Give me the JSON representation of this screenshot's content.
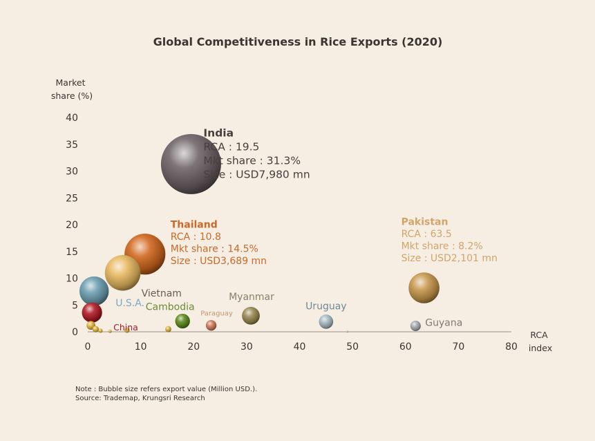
{
  "chart_data": {
    "type": "scatter",
    "title": "Global Competitiveness in Rice Exports (2020)",
    "ylabel": [
      "Market",
      "share (%)"
    ],
    "xlabel": [
      "RCA",
      "index"
    ],
    "xlim": [
      0,
      80
    ],
    "ylim": [
      0,
      40
    ],
    "xticks": [
      0,
      10,
      20,
      30,
      40,
      50,
      60,
      70,
      80
    ],
    "yticks": [
      0,
      5,
      10,
      15,
      20,
      25,
      30,
      35,
      40
    ],
    "grid": false,
    "bubble_size": "export value (Million USD)",
    "points": [
      {
        "name": "India",
        "x": 19.5,
        "y": 31.3,
        "size": 7980,
        "color": "#6e6266",
        "label_color": "#4a3f3c"
      },
      {
        "name": "Thailand",
        "x": 10.8,
        "y": 14.5,
        "size": 3689,
        "color": "#d0661c",
        "label_color": "#c96a28"
      },
      {
        "name": "Vietnam",
        "x": 6.6,
        "y": 11.0,
        "size": 2800,
        "color": "#e8b860",
        "label_color": "#6b5d53"
      },
      {
        "name": "Pakistan",
        "x": 63.5,
        "y": 8.2,
        "size": 2101,
        "color": "#c8974a",
        "label_color": "#d1a56a"
      },
      {
        "name": "U.S.A.",
        "x": 1.2,
        "y": 7.6,
        "size": 1900,
        "color": "#6a9db0",
        "label_color": "#7aaac0"
      },
      {
        "name": "China",
        "x": 0.8,
        "y": 3.6,
        "size": 900,
        "color": "#b01822",
        "label_color": "#a01d22"
      },
      {
        "name": "Myanmar",
        "x": 30.8,
        "y": 3.0,
        "size": 700,
        "color": "#9a8850",
        "label_color": "#8a8068"
      },
      {
        "name": "Cambodia",
        "x": 17.9,
        "y": 2.0,
        "size": 480,
        "color": "#5d8a1c",
        "label_color": "#6e8a3a"
      },
      {
        "name": "Uruguay",
        "x": 45.0,
        "y": 1.9,
        "size": 450,
        "color": "#a8bcc4",
        "label_color": "#6c8a96"
      },
      {
        "name": "Paraguay",
        "x": 23.3,
        "y": 1.2,
        "size": 250,
        "color": "#cf7e5a",
        "label_color": "#c99273"
      },
      {
        "name": "Guyana",
        "x": 61.9,
        "y": 1.1,
        "size": 240,
        "color": "#a9adb2",
        "label_color": "#7f7a75"
      }
    ],
    "small_points": [
      {
        "x": 7.4,
        "y": 0.3,
        "size": 60,
        "color": "#e0b640"
      },
      {
        "x": 15.2,
        "y": 0.5,
        "size": 80,
        "color": "#e0b640"
      },
      {
        "x": 4.2,
        "y": 0.1,
        "size": 25,
        "color": "#e0b640"
      },
      {
        "x": 0.6,
        "y": 1.2,
        "size": 170,
        "color": "#e0b640"
      },
      {
        "x": 1.5,
        "y": 0.5,
        "size": 90,
        "color": "#e0b640"
      },
      {
        "x": 2.4,
        "y": 0.2,
        "size": 40,
        "color": "#e0b640"
      },
      {
        "x": 49.0,
        "y": 0.05,
        "size": 6,
        "color": "#c0c4c8"
      }
    ],
    "annotations": [
      {
        "for": "India",
        "lines": [
          "India",
          "RCA : 19.5",
          "Mkt share : 31.3%",
          "Size : USD7,980 mn"
        ]
      },
      {
        "for": "Thailand",
        "lines": [
          "Thailand",
          "RCA : 10.8",
          "Mkt share : 14.5%",
          "Size : USD3,689 mn"
        ]
      },
      {
        "for": "Pakistan",
        "lines": [
          "Pakistan",
          "RCA : 63.5",
          "Mkt share : 8.2%",
          "Size : USD2,101 mn"
        ]
      }
    ]
  },
  "note": {
    "line1": "Note : Bubble size refers export value (Million USD.).",
    "line2": "Source: Trademap, Krungsri Research"
  }
}
